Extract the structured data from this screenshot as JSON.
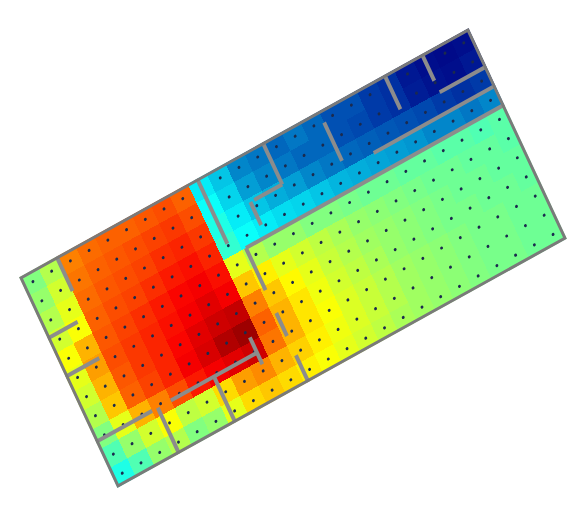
{
  "chart_data": {
    "type": "heatmap",
    "color": "Jet",
    "zlim": [
      0,
      100
    ],
    "tick_labels": false,
    "marker": "circle",
    "cells": [
      [
        50,
        55,
        75,
        77,
        78,
        78,
        79,
        80,
        78,
        35,
        30,
        22,
        20,
        18,
        20,
        18,
        15,
        15,
        12,
        10,
        5,
        3,
        2,
        3
      ],
      [
        52,
        58,
        76,
        78,
        79,
        80,
        81,
        82,
        80,
        38,
        32,
        25,
        22,
        20,
        18,
        18,
        15,
        14,
        12,
        10,
        6,
        4,
        3,
        5
      ],
      [
        55,
        60,
        77,
        79,
        80,
        81,
        83,
        84,
        82,
        40,
        35,
        30,
        27,
        25,
        22,
        20,
        18,
        17,
        16,
        15,
        14,
        12,
        10,
        12
      ],
      [
        58,
        62,
        78,
        80,
        81,
        83,
        85,
        86,
        84,
        42,
        38,
        35,
        33,
        32,
        30,
        28,
        27,
        26,
        25,
        24,
        22,
        22,
        20,
        22
      ],
      [
        62,
        70,
        79,
        81,
        83,
        85,
        87,
        88,
        86,
        60,
        55,
        52,
        52,
        50,
        50,
        49,
        48,
        48,
        47,
        47,
        46,
        46,
        45,
        46
      ],
      [
        60,
        72,
        80,
        82,
        84,
        86,
        88,
        90,
        88,
        68,
        64,
        60,
        58,
        56,
        54,
        52,
        51,
        50,
        49,
        48,
        48,
        47,
        47,
        46
      ],
      [
        58,
        70,
        79,
        82,
        84,
        87,
        90,
        92,
        93,
        75,
        68,
        63,
        60,
        57,
        55,
        53,
        52,
        51,
        50,
        49,
        48,
        48,
        47,
        47
      ],
      [
        55,
        68,
        78,
        81,
        84,
        88,
        91,
        95,
        97,
        78,
        70,
        65,
        61,
        58,
        56,
        54,
        52,
        51,
        50,
        49,
        49,
        48,
        48,
        47
      ],
      [
        50,
        60,
        70,
        75,
        80,
        85,
        88,
        90,
        92,
        76,
        70,
        65,
        62,
        59,
        57,
        55,
        53,
        52,
        51,
        50,
        49,
        49,
        48,
        48
      ],
      [
        45,
        52,
        58,
        62,
        56,
        58,
        66,
        72,
        74,
        70,
        67,
        64,
        61,
        59,
        57,
        55,
        53,
        52,
        51,
        50,
        49,
        49,
        48,
        48
      ],
      [
        40,
        45,
        52,
        55,
        50,
        52,
        60,
        66,
        68,
        66,
        64,
        62,
        60,
        58,
        56,
        54,
        53,
        52,
        51,
        50,
        49,
        49,
        48,
        48
      ]
    ]
  }
}
